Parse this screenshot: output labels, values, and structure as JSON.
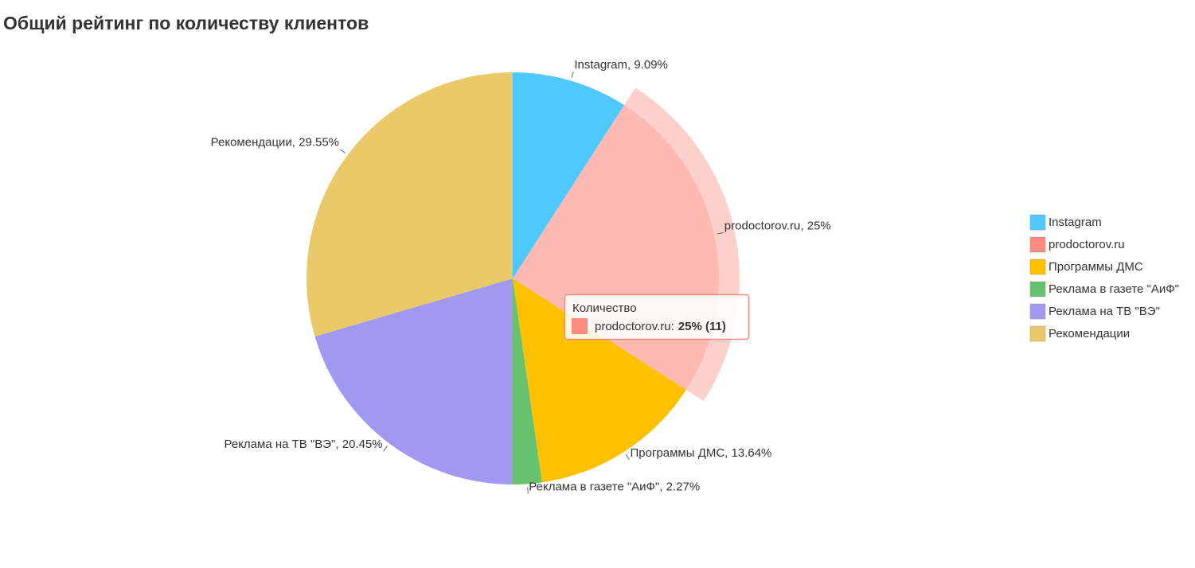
{
  "chart_data": {
    "type": "pie",
    "title": "Общий рейтинг по количеству клиентов",
    "series_name": "Количество",
    "categories": [
      "Instagram",
      "prodoctorov.ru",
      "Программы ДМС",
      "Реклама в газете \"АиФ\"",
      "Реклама на ТВ \"ВЭ\"",
      "Рекомендации"
    ],
    "values": [
      9.09,
      25,
      13.64,
      2.27,
      20.45,
      29.55
    ],
    "value_labels": [
      "Instagram, 9.09%",
      "prodoctorov.ru, 25%",
      "Программы ДМС, 13.64%",
      "Реклама в газете \"АиФ\", 2.27%",
      "Реклама на ТВ \"ВЭ\", 20.45%",
      "Рекомендации, 29.55%"
    ],
    "colors": [
      "#4fc8ff",
      "#fd8a7e",
      "#ffc000",
      "#66c26e",
      "#a199f0",
      "#eac96b"
    ],
    "highlighted": "prodoctorov.ru",
    "tooltip": {
      "title": "Количество",
      "label": "prodoctorov.ru:",
      "value": "25% (11)"
    },
    "legend": "right"
  }
}
